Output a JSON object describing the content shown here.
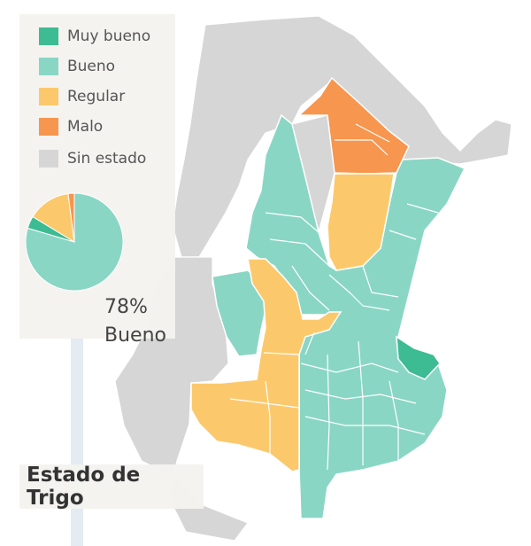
{
  "title": "Estado de Trigo",
  "legend": {
    "items": [
      {
        "label": "Muy bueno",
        "color": "#3dbb93"
      },
      {
        "label": "Bueno",
        "color": "#8ad6c5"
      },
      {
        "label": "Regular",
        "color": "#fbc96c"
      },
      {
        "label": "Malo",
        "color": "#f7964e"
      },
      {
        "label": "Sin estado",
        "color": "#d6d6d6"
      }
    ]
  },
  "summary": {
    "percent": "78%",
    "label": "Bueno"
  },
  "chart_data": {
    "type": "pie",
    "categories": [
      "Bueno",
      "Muy bueno",
      "Regular",
      "Malo"
    ],
    "values": [
      78,
      4,
      14,
      2
    ],
    "colors": [
      "#8ad6c5",
      "#3dbb93",
      "#fbc96c",
      "#f7964e"
    ]
  }
}
